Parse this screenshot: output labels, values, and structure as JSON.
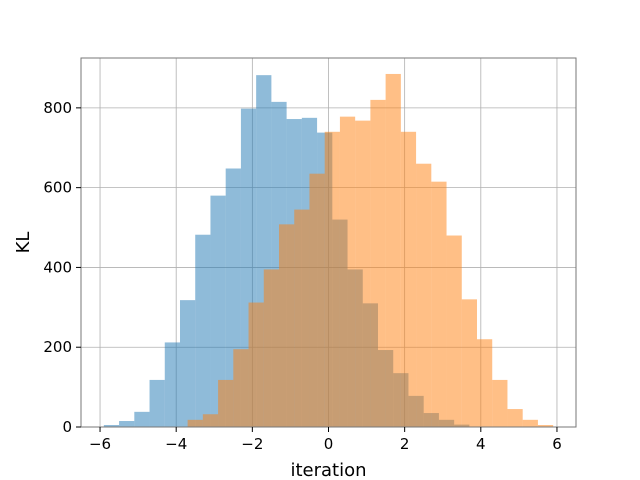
{
  "chart_data": {
    "type": "bar",
    "title": "",
    "xlabel": "iteration",
    "ylabel": "KL",
    "xlim": [
      -6.5,
      6.5
    ],
    "ylim": [
      0,
      925
    ],
    "xticks": [
      -6,
      -4,
      -2,
      0,
      2,
      4,
      6
    ],
    "xtick_labels": [
      "−6",
      "−4",
      "−2",
      "0",
      "2",
      "4",
      "6"
    ],
    "yticks": [
      0,
      200,
      400,
      600,
      800
    ],
    "ytick_labels": [
      "0",
      "200",
      "400",
      "600",
      "800"
    ],
    "grid": true,
    "legend": "none",
    "bin_width": 0.4,
    "series": [
      {
        "color": "#1f77b4",
        "alpha": 0.5,
        "bin_starts": [
          -5.9,
          -5.5,
          -5.1,
          -4.7,
          -4.3,
          -3.9,
          -3.5,
          -3.1,
          -2.7,
          -2.3,
          -1.9,
          -1.5,
          -1.1,
          -0.7,
          -0.3,
          0.1,
          0.5,
          0.9,
          1.3,
          1.7,
          2.1,
          2.5,
          2.9,
          3.3
        ],
        "values": [
          5,
          15,
          38,
          118,
          212,
          318,
          482,
          580,
          648,
          798,
          882,
          815,
          772,
          775,
          738,
          520,
          395,
          310,
          193,
          135,
          78,
          35,
          18,
          6
        ]
      },
      {
        "color": "#ff7f0e",
        "alpha": 0.5,
        "bin_starts": [
          -3.7,
          -3.3,
          -2.9,
          -2.5,
          -2.1,
          -1.7,
          -1.3,
          -0.9,
          -0.5,
          -0.1,
          0.3,
          0.7,
          1.1,
          1.5,
          1.9,
          2.3,
          2.7,
          3.1,
          3.5,
          3.9,
          4.3,
          4.7,
          5.1,
          5.5
        ],
        "values": [
          18,
          32,
          118,
          195,
          312,
          395,
          508,
          545,
          635,
          740,
          778,
          768,
          820,
          885,
          740,
          660,
          615,
          480,
          320,
          220,
          118,
          45,
          18,
          5
        ]
      }
    ]
  }
}
